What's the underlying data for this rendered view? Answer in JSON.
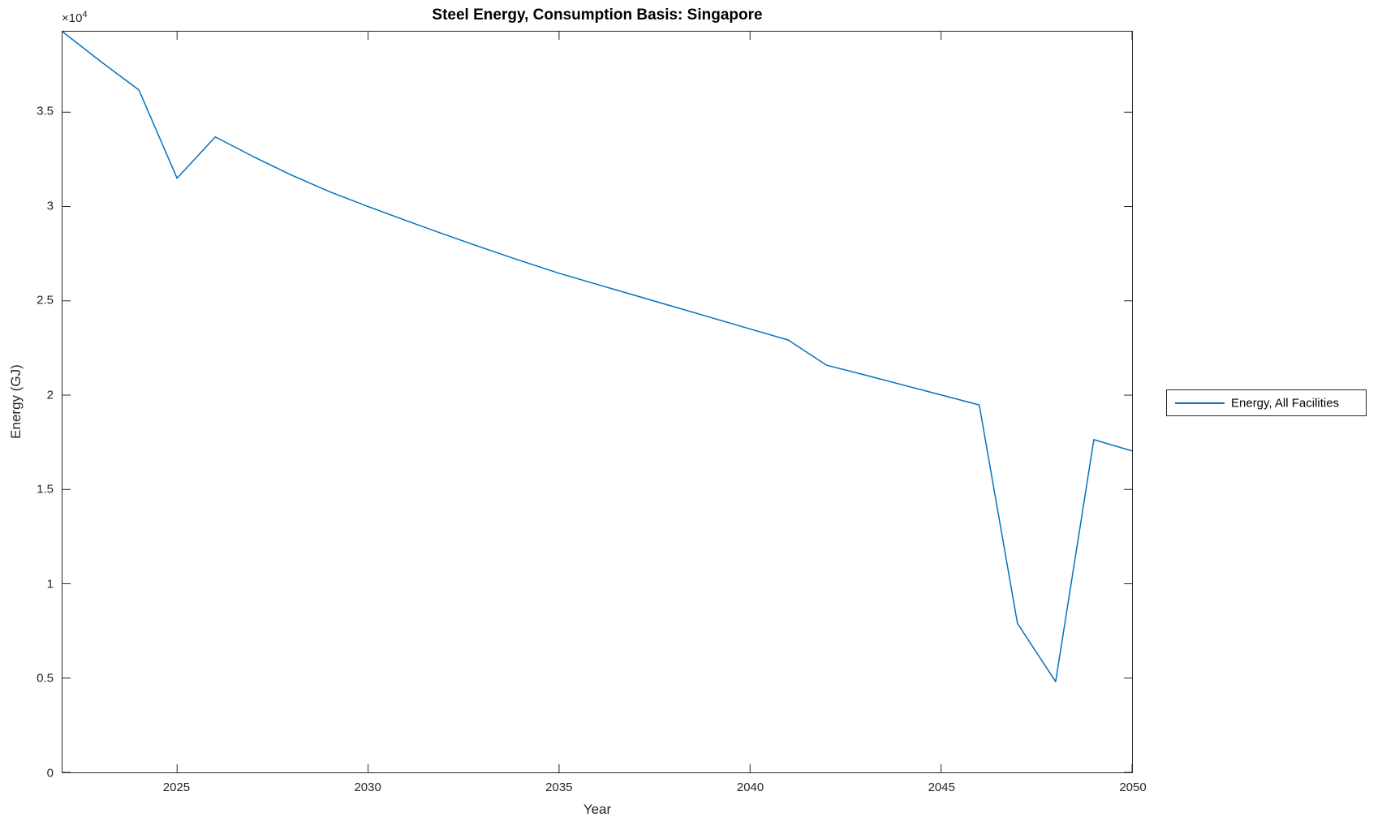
{
  "figure": {
    "title": "Steel Energy, Consumption Basis: Singapore",
    "xlabel": "Year",
    "ylabel": "Energy (GJ)",
    "y_exponent_base": "×10",
    "y_exponent_power": "4",
    "background_color": "#ffffff",
    "axis_color": "#262626",
    "line_color": "#0072BD"
  },
  "legend": {
    "position": "eastoutside",
    "entries": [
      {
        "label": "Energy, All Facilities",
        "color": "#0072BD"
      }
    ]
  },
  "chart_data": {
    "type": "line",
    "title": "Steel Energy, Consumption Basis: Singapore",
    "xlabel": "Year",
    "ylabel": "Energy (GJ)",
    "xlim": [
      2022,
      2050
    ],
    "ylim": [
      0,
      39270
    ],
    "grid": false,
    "legend_position": "eastoutside",
    "x_ticks": [
      2025,
      2030,
      2035,
      2040,
      2045,
      2050
    ],
    "x_tick_labels": [
      "2025",
      "2030",
      "2035",
      "2040",
      "2045",
      "2050"
    ],
    "y_ticks": [
      0,
      5000,
      10000,
      15000,
      20000,
      25000,
      30000,
      35000
    ],
    "y_tick_labels": [
      "0",
      "0.5",
      "1",
      "1.5",
      "2",
      "2.5",
      "3",
      "3.5"
    ],
    "y_axis_multiplier": "1e4",
    "series": [
      {
        "name": "Energy, All Facilities",
        "color": "#0072BD",
        "x": [
          2022,
          2023,
          2024,
          2025,
          2026,
          2027,
          2028,
          2029,
          2030,
          2031,
          2032,
          2033,
          2034,
          2035,
          2036,
          2037,
          2038,
          2039,
          2040,
          2041,
          2042,
          2043,
          2044,
          2045,
          2046,
          2047,
          2048,
          2049,
          2050
        ],
        "y": [
          39270,
          37690,
          36180,
          31500,
          33690,
          32640,
          31660,
          30780,
          30000,
          29250,
          28520,
          27810,
          27120,
          26460,
          25870,
          25280,
          24690,
          24100,
          23510,
          22920,
          21590,
          21070,
          20540,
          20010,
          19480,
          7900,
          4810,
          17640,
          17040
        ]
      }
    ]
  }
}
